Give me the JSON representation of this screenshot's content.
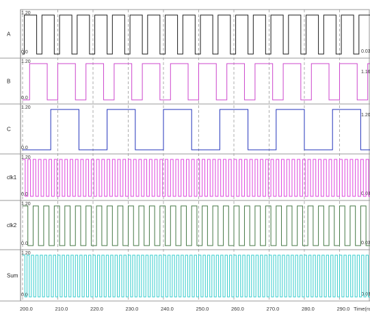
{
  "chart_data": {
    "type": "line",
    "title": "",
    "xlabel": "Time(ns)",
    "ylabel": "",
    "x_axis": {
      "range": [
        200.0,
        300.0
      ],
      "ticks": [
        {
          "value": 200,
          "label": "200.0"
        },
        {
          "value": 210,
          "label": "210.0"
        },
        {
          "value": 220,
          "label": "220.0"
        },
        {
          "value": 230,
          "label": "230.0"
        },
        {
          "value": 240,
          "label": "240.0"
        },
        {
          "value": 250,
          "label": "250.0"
        },
        {
          "value": 260,
          "label": "260.0"
        },
        {
          "value": 270,
          "label": "270.0"
        },
        {
          "value": 280,
          "label": "280.0"
        },
        {
          "value": 290,
          "label": "290.0"
        }
      ],
      "xlabel_text": "Time(ns)"
    },
    "grid": "vertical-dashed",
    "signals": [
      {
        "name": "A",
        "color": "#1a1a1a",
        "high_label": "1.20",
        "low_label": "0.0",
        "end_value_label": "0.03",
        "high": 1.2,
        "low": 0.0,
        "period_ns": 5,
        "high_ns": 3.5,
        "phase_ns": 0.5
      },
      {
        "name": "B",
        "color": "#cc44cc",
        "high_label": "1.20",
        "low_label": "0.0",
        "end_value_label": "1.16",
        "high": 1.2,
        "low": 0.0,
        "period_ns": 8,
        "high_ns": 5,
        "phase_ns": 2
      },
      {
        "name": "C",
        "color": "#2233bb",
        "high_label": "1.20",
        "low_label": "0.0",
        "end_value_label": "1.20",
        "high": 1.2,
        "low": 0.0,
        "period_ns": 16,
        "high_ns": 8,
        "phase_ns": -8
      },
      {
        "name": "clk1",
        "color": "#dd44dd",
        "high_label": "1.20",
        "low_label": "0.0",
        "end_value_label": "0.03",
        "high": 1.2,
        "low": 0.0,
        "period_ns": 1.5,
        "high_ns": 0.75,
        "phase_ns": 0
      },
      {
        "name": "clk2",
        "color": "#447744",
        "high_label": "1.20",
        "low_label": "0.0",
        "end_value_label": "0.03",
        "high": 1.2,
        "low": 0.0,
        "period_ns": 3,
        "high_ns": 1.5,
        "phase_ns": 0
      },
      {
        "name": "Sum",
        "color": "#33cccc",
        "high_label": "1.20",
        "low_label": "0.0",
        "end_value_label": "0.03",
        "high": 1.2,
        "low": 0.0,
        "period_ns": 1.25,
        "high_ns": 0.65,
        "phase_ns": 0
      }
    ]
  }
}
